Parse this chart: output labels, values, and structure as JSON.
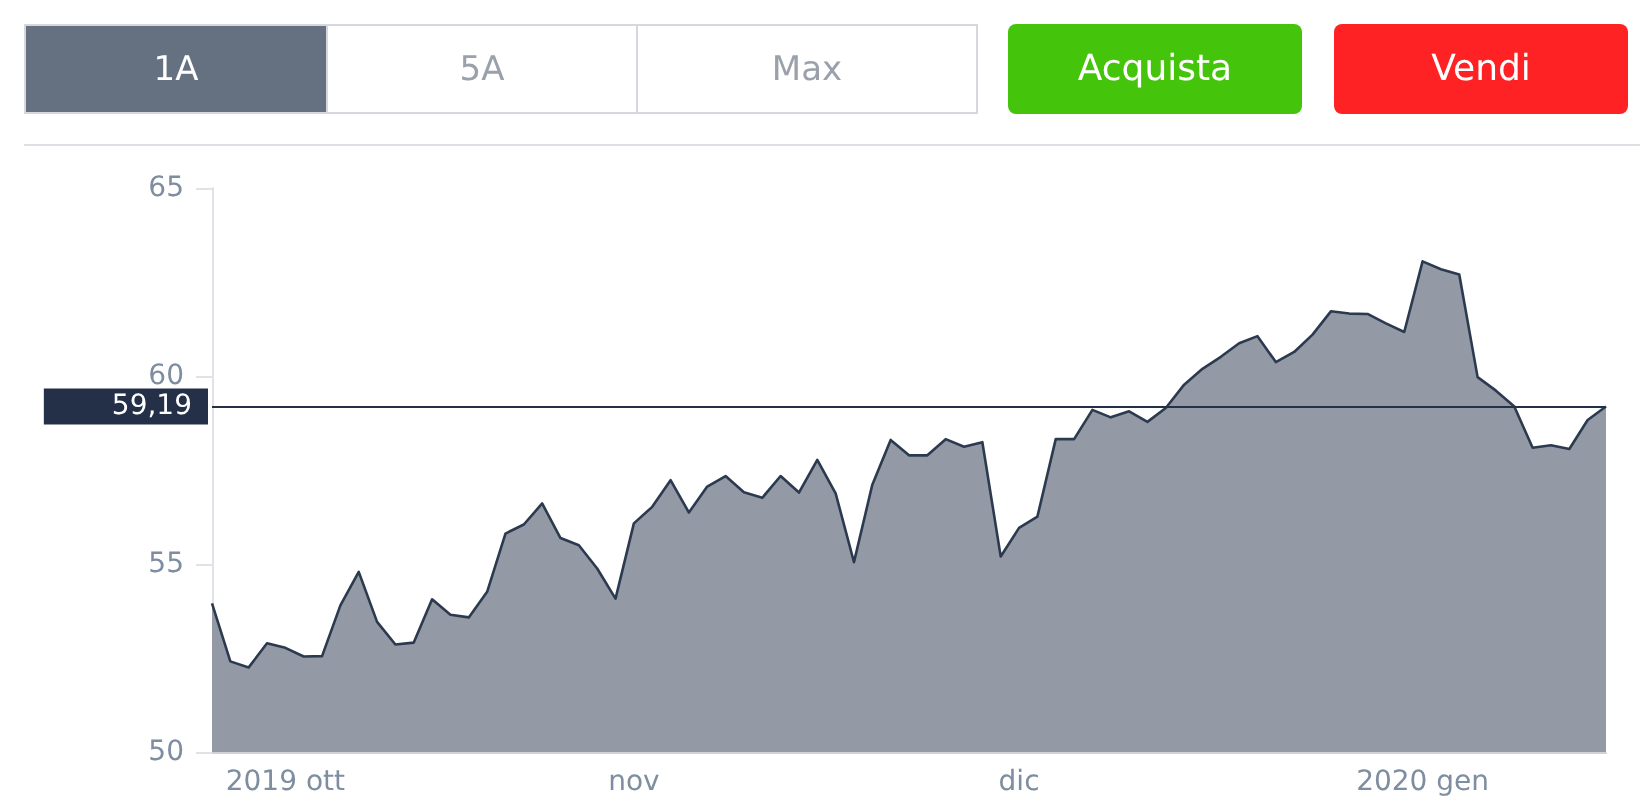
{
  "chart_data": {
    "type": "area",
    "annotations": [
      "1A",
      "5A",
      "Max",
      "Acquista",
      "Vendi"
    ],
    "categories": [
      null,
      null,
      null,
      null,
      "2019 ott",
      null,
      null,
      null,
      null,
      null,
      null,
      null,
      null,
      null,
      null,
      null,
      null,
      null,
      null,
      null,
      null,
      null,
      null,
      "nov",
      null,
      null,
      null,
      null,
      null,
      null,
      null,
      null,
      null,
      null,
      null,
      null,
      null,
      null,
      null,
      null,
      null,
      null,
      null,
      null,
      "dic",
      null,
      null,
      null,
      null,
      null,
      null,
      null,
      null,
      null,
      null,
      null,
      null,
      null,
      null,
      null,
      null,
      null,
      null,
      null,
      null,
      null,
      "2020 gen",
      null,
      null,
      null,
      null,
      null,
      null,
      null,
      null,
      null,
      null
    ],
    "series": [
      {
        "color": "#939aa6",
        "values": [
          53.95,
          52.41,
          52.25,
          52.89,
          52.77,
          52.54,
          52.55,
          53.9,
          54.79,
          53.46,
          52.86,
          52.91,
          54.06,
          53.65,
          53.58,
          54.26,
          55.81,
          56.05,
          56.61,
          55.69,
          55.5,
          54.88,
          54.08,
          56.08,
          56.52,
          57.23,
          56.37,
          57.06,
          57.34,
          56.91,
          56.76,
          57.34,
          56.9,
          57.77,
          56.88,
          55.05,
          57.11,
          58.3,
          57.89,
          57.89,
          58.32,
          58.12,
          58.24,
          55.2,
          55.96,
          56.26,
          58.32,
          58.32,
          59.1,
          58.9,
          59.06,
          58.78,
          59.15,
          59.77,
          60.19,
          60.51,
          60.87,
          61.06,
          60.37,
          60.64,
          61.1,
          61.72,
          61.66,
          61.65,
          61.4,
          61.17,
          63.05,
          62.84,
          62.7,
          59.97,
          59.61,
          59.19,
          58.09,
          58.16,
          58.06,
          58.83,
          59.19
        ]
      }
    ],
    "ylim": [
      50,
      65
    ],
    "yticks": [
      50,
      55,
      60,
      65
    ],
    "grid": false,
    "ref_lines": [
      {
        "axis": "y",
        "value": 59.19,
        "label": "59,19",
        "color": "#233047"
      }
    ]
  }
}
